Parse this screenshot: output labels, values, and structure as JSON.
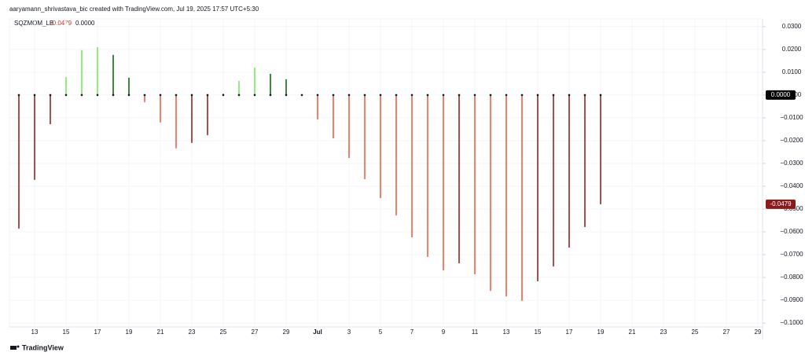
{
  "chart_data": {
    "type": "bar",
    "title": "aaryamann_shrivastava_bic created with TradingView.com, Jul 19, 2025 17:57 UTC+5:30",
    "brand": "TradingView",
    "zero_line_label": "0.0000",
    "categories": [
      null,
      "13",
      null,
      "15",
      null,
      "17",
      null,
      "19",
      null,
      "21",
      null,
      "23",
      null,
      "25",
      null,
      "27",
      null,
      "29",
      null,
      "Jul",
      null,
      "3",
      null,
      "5",
      null,
      "7",
      null,
      "9",
      null,
      "11",
      null,
      "13",
      null,
      "15",
      null,
      "17",
      null,
      "19",
      null,
      "21",
      null,
      "23",
      null,
      "25",
      null,
      "27",
      null,
      "29"
    ],
    "series": [
      {
        "name": "SQZMOM_LB",
        "values": [
          -0.0586,
          -0.0372,
          -0.0128,
          0.0079,
          0.0197,
          0.021,
          0.0176,
          0.0076,
          -0.0031,
          -0.012,
          -0.0234,
          -0.021,
          -0.0176,
          0.0005,
          0.0062,
          0.012,
          0.0093,
          0.0069,
          0.0002,
          -0.0107,
          -0.019,
          -0.0276,
          -0.0369,
          -0.0452,
          -0.0528,
          -0.0624,
          -0.071,
          -0.0769,
          -0.0738,
          -0.0786,
          -0.0859,
          -0.0883,
          -0.0903,
          -0.0817,
          -0.0752,
          -0.0669,
          -0.0579,
          -0.0479,
          null,
          null,
          null,
          null,
          null,
          null,
          null,
          null,
          null,
          null
        ],
        "colors": [
          "#a5524d",
          "#a5524d",
          "#a5524d",
          "#8ef07a",
          "#8ef07a",
          "#8ef07a",
          "#3c8a3c",
          "#3c8a3c",
          "#f0806b",
          "#f0806b",
          "#f0806b",
          "#a5524d",
          "#a5524d",
          "#3c8a3c",
          "#8ef07a",
          "#8ef07a",
          "#3c8a3c",
          "#3c8a3c",
          "#3c8a3c",
          "#f0806b",
          "#f0806b",
          "#f0806b",
          "#f0806b",
          "#f0806b",
          "#f0806b",
          "#f0806b",
          "#f0806b",
          "#f0806b",
          "#a5524d",
          "#f0806b",
          "#f0806b",
          "#f0806b",
          "#f0806b",
          "#a5524d",
          "#a5524d",
          "#a5524d",
          "#a5524d",
          "#a5524d",
          null,
          null,
          null,
          null,
          null,
          null,
          null,
          null,
          null,
          null
        ]
      }
    ],
    "ylim": [
      -0.1017,
      0.0334
    ],
    "yticks": [
      {
        "value": 0.03,
        "label": "0.0300"
      },
      {
        "value": 0.02,
        "label": "0.0200"
      },
      {
        "value": 0.01,
        "label": "0.0100"
      },
      {
        "value": 0,
        "label": "0.0000"
      },
      {
        "value": -0.01,
        "label": "−0.0100"
      },
      {
        "value": -0.02,
        "label": "−0.0200"
      },
      {
        "value": -0.03,
        "label": "−0.0300"
      },
      {
        "value": -0.04,
        "label": "−0.0400"
      },
      {
        "value": -0.05,
        "label": "−0.0500"
      },
      {
        "value": -0.06,
        "label": "−0.0600"
      },
      {
        "value": -0.07,
        "label": "−0.0700"
      },
      {
        "value": -0.08,
        "label": "−0.0800"
      },
      {
        "value": -0.09,
        "label": "−0.0900"
      },
      {
        "value": -0.1,
        "label": "−0.1000"
      }
    ],
    "grid": true
  }
}
